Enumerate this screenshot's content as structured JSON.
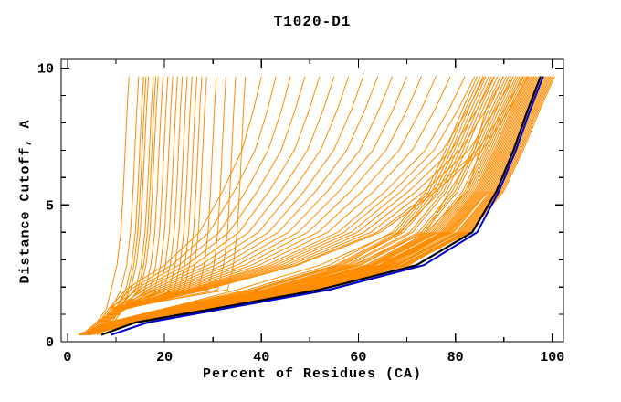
{
  "chart_data": {
    "type": "line",
    "title": "T1020-D1",
    "xlabel": "Percent of Residues (CA)",
    "ylabel": "Distance Cutoff, A",
    "xlim": [
      -1.3,
      102.3
    ],
    "ylim": [
      0,
      10.32
    ],
    "xticks_major": [
      0,
      20,
      40,
      60,
      80,
      100
    ],
    "xticks_minor": [
      10,
      30,
      50,
      70,
      90
    ],
    "yticks_major": [
      0,
      5,
      10
    ],
    "yticks_minor": [
      1,
      2,
      3,
      4,
      6,
      7,
      8,
      9
    ],
    "grid": false,
    "legend": "none",
    "colors": {
      "background": "#FFFFFF",
      "axis": "#000000",
      "predictions": "#FF8C00",
      "model_black": "#000000",
      "model_blue": "#0000CC"
    },
    "cutoff_levels": [
      0.25,
      0.7,
      1.2,
      1.9,
      2.8,
      4.0,
      5.5,
      7.0,
      8.5,
      9.7
    ],
    "series": [
      {
        "name": "predictions",
        "color_key": "predictions",
        "width": 1,
        "curves_x": [
          [
            2.2,
            8.2,
            19.6,
            37.2,
            54,
            67,
            74,
            78,
            81.5,
            84.5
          ],
          [
            2.3,
            8.4,
            20,
            35,
            52,
            67.6,
            74.6,
            78.6,
            82.1,
            85.1
          ],
          [
            2.4,
            8.7,
            20.4,
            38.3,
            55.2,
            68.2,
            75.2,
            79.2,
            82.7,
            85.7
          ],
          [
            2.5,
            8.9,
            20.9,
            38.8,
            55.8,
            68.8,
            75.8,
            79.8,
            83.3,
            86.3
          ],
          [
            2.6,
            9.2,
            21.3,
            39.4,
            56.4,
            69.4,
            76.4,
            80.4,
            83.9,
            86.9
          ],
          [
            2.7,
            9.4,
            21.7,
            38.5,
            57,
            68.5,
            77,
            81,
            84.5,
            87.5
          ],
          [
            2.7,
            9.6,
            22.1,
            40.4,
            57.6,
            70.6,
            77.6,
            81.6,
            85.1,
            88.1
          ],
          [
            2.8,
            9.9,
            22.5,
            41,
            58.2,
            71.2,
            78.2,
            82.2,
            85.7,
            88.7
          ],
          [
            2.9,
            10.1,
            23,
            41.5,
            58.8,
            74,
            78.8,
            84,
            86.3,
            89.3
          ],
          [
            3,
            10.4,
            23.4,
            42.1,
            59.4,
            72.4,
            79.4,
            83.4,
            86.9,
            89.9
          ],
          [
            3.1,
            10.6,
            23.8,
            42.6,
            60,
            73,
            80,
            84,
            87.5,
            90.5
          ],
          [
            3.2,
            10.8,
            24.2,
            43.1,
            60.5,
            73.5,
            80.5,
            84.5,
            88,
            91
          ],
          [
            3.3,
            11,
            24.5,
            43.5,
            63,
            74,
            82.5,
            85,
            88.5,
            91.5
          ],
          [
            3.3,
            11.2,
            24.9,
            44,
            61.5,
            74.5,
            81.5,
            85.5,
            89,
            92
          ],
          [
            3.4,
            11.4,
            25.2,
            44.4,
            62,
            75,
            82,
            86,
            89.5,
            92.5
          ],
          [
            3.5,
            10,
            25.5,
            42.5,
            62.4,
            75.4,
            82.4,
            86.4,
            89.9,
            92.9
          ],
          [
            3.5,
            11.7,
            25.8,
            45.1,
            62.8,
            75.8,
            82.8,
            86.8,
            90.3,
            93.3
          ],
          [
            3.6,
            11.9,
            26,
            45.5,
            63.2,
            76.2,
            83.2,
            87.2,
            90.7,
            93.7
          ],
          [
            3.6,
            12,
            26.3,
            45.8,
            63.6,
            76.6,
            83.6,
            87.6,
            91.1,
            94.1
          ],
          [
            3.7,
            12.2,
            29,
            46.2,
            66.5,
            77,
            84,
            88,
            91.5,
            94.5
          ],
          [
            3.7,
            12.3,
            26.8,
            46.5,
            64.3,
            77.3,
            84.3,
            88.3,
            91.8,
            94.8
          ],
          [
            3.8,
            12.4,
            27,
            46.7,
            64.6,
            77.6,
            84.6,
            88.6,
            92.1,
            95.1
          ],
          [
            3.8,
            12.6,
            27.2,
            47,
            64.9,
            77.9,
            84.9,
            88.9,
            92.4,
            95.4
          ],
          [
            3.9,
            12.7,
            27.4,
            47.3,
            65.2,
            78.2,
            85.2,
            89.2,
            92.7,
            95.7
          ],
          [
            3.9,
            12.8,
            27.7,
            47.6,
            65.5,
            78.5,
            85.5,
            89.5,
            93,
            96
          ],
          [
            4,
            12.9,
            27.9,
            47.8,
            65.8,
            78.8,
            85.8,
            89.8,
            93.3,
            96.3
          ],
          [
            4,
            13,
            28.1,
            48.1,
            66.1,
            79.1,
            86.1,
            90.1,
            93.6,
            96.6
          ],
          [
            4.1,
            13.2,
            28.3,
            48.4,
            63.5,
            79.4,
            86.4,
            90.4,
            93.9,
            96.9
          ],
          [
            4.1,
            13.3,
            28.5,
            48.6,
            66.7,
            79.7,
            86.7,
            90.7,
            94.2,
            97.2
          ],
          [
            4.2,
            13.4,
            28.7,
            46.5,
            67,
            78.5,
            87,
            91,
            94.5,
            97.5
          ],
          [
            4.2,
            13.5,
            28.9,
            49.2,
            67.3,
            80.3,
            87.3,
            91.3,
            94.8,
            97.8
          ],
          [
            4.2,
            13.6,
            29.1,
            49.4,
            67.6,
            80.6,
            87.6,
            91.6,
            95.1,
            98.1
          ],
          [
            4.3,
            13.8,
            29.3,
            49.7,
            67.9,
            80.9,
            87.9,
            91.9,
            95.4,
            98.4
          ],
          [
            4.3,
            13.9,
            29.5,
            50,
            68.2,
            81.2,
            88.2,
            92.2,
            95.7,
            98.7
          ],
          [
            4.4,
            14,
            27.5,
            50.3,
            70.5,
            81.5,
            88.5,
            92.5,
            96,
            99
          ],
          [
            4.4,
            14.1,
            30,
            50.5,
            68.8,
            81.8,
            88.8,
            92.8,
            96.3,
            99.3
          ],
          [
            4.5,
            14.2,
            30.2,
            50.8,
            69.1,
            82.1,
            89.1,
            93.1,
            96.6,
            99.6
          ],
          [
            4.5,
            14.4,
            30.4,
            54,
            69.4,
            82.4,
            89.4,
            93.4,
            96.9,
            99.9
          ],
          [
            4.6,
            14.5,
            30.6,
            51.3,
            69.7,
            82.7,
            89.7,
            93.7,
            97.2,
            100.2
          ],
          [
            4.6,
            14.6,
            30.8,
            51.6,
            70,
            83,
            90,
            94,
            97.5,
            100.5
          ],
          [
            3,
            6,
            10,
            12,
            20,
            27.2,
            32,
            36,
            38.4,
            40
          ],
          [
            4,
            7,
            11,
            12.9,
            21.5,
            29.2,
            34.4,
            38.7,
            41.3,
            43
          ],
          [
            3.5,
            6.5,
            10.5,
            13.8,
            23,
            31.3,
            36.8,
            41.4,
            44.2,
            46
          ],
          [
            4.5,
            7.5,
            11.5,
            14.7,
            24.5,
            33.3,
            39.2,
            44.1,
            47,
            49
          ],
          [
            3,
            6,
            10,
            15.6,
            26,
            35.4,
            41.6,
            46.8,
            49.9,
            52
          ],
          [
            4,
            7,
            11,
            16.5,
            27.5,
            37.4,
            44,
            49.5,
            52.8,
            55
          ],
          [
            5,
            8,
            12,
            17.4,
            29,
            39.4,
            46.4,
            52.2,
            55.7,
            58
          ],
          [
            3.5,
            6.5,
            10.5,
            18.3,
            30.5,
            41.5,
            48.8,
            54.9,
            58.6,
            61
          ],
          [
            4.5,
            7.5,
            11.5,
            19.2,
            32,
            43.5,
            51.2,
            57.6,
            61.4,
            64
          ],
          [
            3,
            6,
            10,
            20.1,
            33.5,
            45.6,
            53.6,
            60.3,
            64.3,
            67
          ],
          [
            4,
            7,
            11,
            21,
            35,
            47.6,
            56,
            63,
            67.2,
            70
          ],
          [
            5,
            8,
            12,
            21.9,
            36.5,
            49.6,
            58.4,
            65.7,
            70.1,
            73
          ],
          [
            3.5,
            6.5,
            10.5,
            22.8,
            38,
            51.7,
            60.8,
            68.4,
            73,
            76
          ],
          [
            4.5,
            7.5,
            11.5,
            23.7,
            39.5,
            53.7,
            63.2,
            71.1,
            75.8,
            79
          ],
          [
            3,
            6,
            10,
            24.6,
            41,
            55.8,
            65.6,
            73.8,
            78.7,
            82
          ],
          [
            4,
            7,
            11,
            25.2,
            42,
            57.1,
            67.2,
            75.6,
            80.6,
            84
          ],
          [
            5,
            8,
            12,
            25.8,
            43,
            58.5,
            68.8,
            77.4,
            82.6,
            86
          ],
          [
            3.5,
            6.5,
            10.5,
            26.4,
            44,
            59.8,
            70.4,
            79.2,
            84.5,
            88
          ],
          [
            4.5,
            7.5,
            11.5,
            27,
            45,
            61.2,
            72,
            81,
            86.4,
            90
          ],
          [
            3,
            6,
            10,
            27.6,
            46,
            62.6,
            73.6,
            82.8,
            88.3,
            92
          ],
          [
            4,
            7,
            11,
            28.2,
            47,
            63.9,
            75.2,
            84.6,
            90.2,
            94
          ],
          [
            5,
            8,
            12,
            28.5,
            47.5,
            64.6,
            76,
            85.5,
            91.2,
            95
          ],
          [
            3,
            6,
            8,
            9,
            10.2,
            11,
            11.5,
            11.9,
            12.3,
            12.7
          ],
          [
            4,
            7,
            9,
            11,
            12.2,
            13,
            13.5,
            13.9,
            14.3,
            14.7
          ],
          [
            3.5,
            6.5,
            8.5,
            12,
            13.2,
            14,
            14.5,
            14.9,
            15.3,
            15.7
          ],
          [
            5,
            8,
            10,
            12.5,
            13.7,
            14.5,
            15,
            15.4,
            15.8,
            16.2
          ],
          [
            4,
            7,
            9,
            13,
            14.2,
            15,
            15.5,
            15.9,
            16.3,
            16.7
          ],
          [
            5,
            8,
            10,
            14,
            15.2,
            16,
            16.5,
            16.9,
            17.3,
            17.7
          ],
          [
            3.5,
            6.5,
            8.5,
            14.5,
            15.7,
            16.5,
            17,
            17.4,
            17.8,
            18.2
          ],
          [
            6,
            9,
            11,
            15,
            16.2,
            17,
            17.5,
            17.9,
            18.3,
            18.7
          ],
          [
            4.5,
            7.5,
            9.5,
            16,
            17.2,
            18,
            18.5,
            18.9,
            19.3,
            19.7
          ],
          [
            5.5,
            8.5,
            10.5,
            17,
            18.2,
            19,
            19.5,
            19.9,
            20.3,
            20.7
          ],
          [
            4,
            7,
            9,
            18,
            19.2,
            20,
            20.5,
            20.9,
            21.3,
            21.7
          ],
          [
            6,
            9,
            11,
            19,
            20.2,
            21,
            21.5,
            21.9,
            22.3,
            22.7
          ],
          [
            5,
            8,
            10,
            20,
            21.2,
            22,
            22.5,
            22.9,
            23.3,
            23.7
          ],
          [
            4.5,
            7.5,
            9.5,
            21,
            22.2,
            23,
            23.5,
            23.9,
            24.3,
            24.7
          ],
          [
            6.5,
            9.5,
            11.5,
            22,
            23.2,
            24,
            24.5,
            24.9,
            25.3,
            25.7
          ],
          [
            5,
            8,
            10,
            23,
            24.2,
            25,
            25.5,
            25.9,
            26.3,
            26.7
          ],
          [
            4,
            7,
            9,
            24,
            25.2,
            26,
            26.5,
            26.9,
            27.3,
            27.7
          ],
          [
            6,
            9,
            11,
            25,
            26.2,
            27,
            27.5,
            27.9,
            28.3,
            28.7
          ],
          [
            5.5,
            8.5,
            10.5,
            27,
            28.2,
            29,
            29.5,
            29.9,
            30.3,
            30.7
          ],
          [
            4.5,
            7.5,
            9.5,
            29,
            30.2,
            31,
            31.5,
            31.9,
            32.3,
            32.7
          ],
          [
            6.5,
            9.5,
            11.5,
            31,
            32.2,
            33,
            33.5,
            33.9,
            34.3,
            34.7
          ],
          [
            5,
            8,
            10,
            33,
            34.2,
            35,
            35.5,
            35.9,
            36.3,
            36.7
          ]
        ]
      },
      {
        "name": "highlight-model-black",
        "color_key": "model_black",
        "width": 2.2,
        "curves_x": [
          [
            7,
            14,
            30,
            52,
            72,
            83.5,
            88.5,
            92,
            95,
            97.6
          ]
        ]
      },
      {
        "name": "highlight-model-blue",
        "color_key": "model_blue",
        "width": 2,
        "curves_x": [
          [
            9,
            16.5,
            32,
            54,
            73.5,
            84.5,
            89,
            92.5,
            95.5,
            98.1
          ]
        ]
      }
    ]
  }
}
